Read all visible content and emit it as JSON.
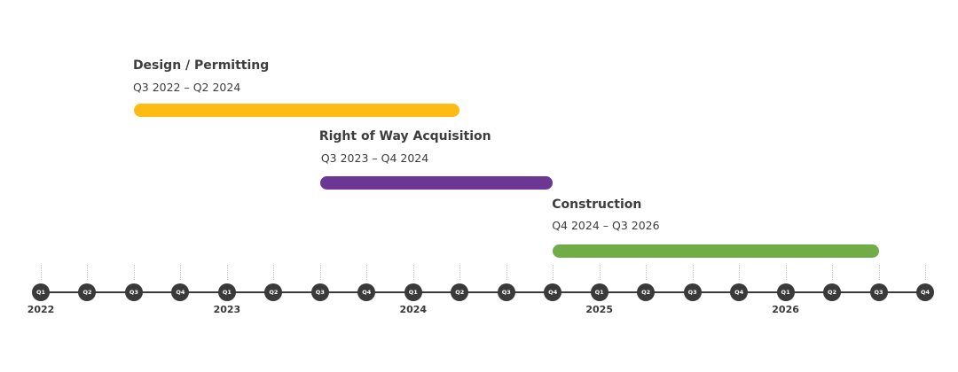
{
  "phases": [
    {
      "title": "Design / Permitting",
      "range": "Q3 2022 – Q2 2024",
      "start": "Q3 2022",
      "end": "Q2 2024",
      "color": "#FDBB14"
    },
    {
      "title": "Right of Way Acquisition",
      "range": "Q3 2023 – Q4 2024",
      "start": "Q3 2023",
      "end": "Q4 2024",
      "color": "#6B3694"
    },
    {
      "title": "Construction",
      "range": "Q4 2024 – Q3 2026",
      "start": "Q4 2024",
      "end": "Q3 2026",
      "color": "#70AD47"
    }
  ],
  "years": [
    "2022",
    "2023",
    "2024",
    "2025",
    "2026"
  ],
  "quarters": [
    "Q1",
    "Q2",
    "Q3",
    "Q4"
  ]
}
